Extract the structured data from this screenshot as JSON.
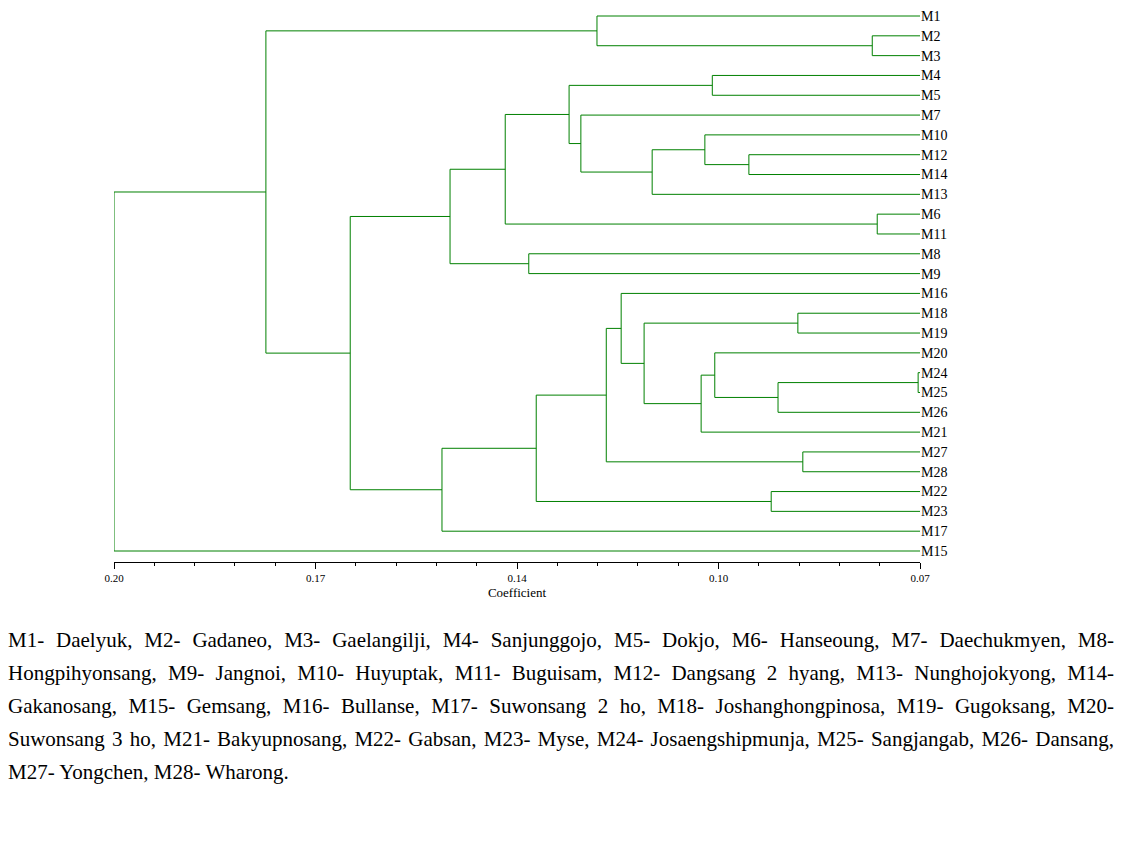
{
  "chart_data": {
    "type": "dendrogram",
    "x_label": "Coefficient",
    "xlim": [
      0.2,
      0.07
    ],
    "xticks": [
      {
        "value": 0.2,
        "label": "0.20"
      },
      {
        "value": 0.1675,
        "label": "0.17"
      },
      {
        "value": 0.135,
        "label": "0.14"
      },
      {
        "value": 0.1025,
        "label": "0.10"
      },
      {
        "value": 0.07,
        "label": "0.07"
      }
    ],
    "color": "#008000",
    "tree": {
      "height": 0.2,
      "children": [
        {
          "height": 0.1755,
          "children": [
            {
              "height": 0.1221,
              "children": [
                "M1",
                {
                  "height": 0.0777,
                  "children": [
                    "M2",
                    "M3"
                  ]
                }
              ]
            },
            {
              "height": 0.1619,
              "children": [
                {
                  "height": 0.1458,
                  "children": [
                    {
                      "height": 0.1369,
                      "children": [
                        {
                          "height": 0.1266,
                          "children": [
                            {
                              "height": 0.1035,
                              "children": [
                                "M4",
                                "M5"
                              ]
                            },
                            {
                              "height": 0.1247,
                              "children": [
                                "M7",
                                {
                                  "height": 0.1132,
                                  "children": [
                                    {
                                      "height": 0.1047,
                                      "children": [
                                        "M10",
                                        {
                                          "height": 0.0976,
                                          "children": [
                                            "M12",
                                            "M14"
                                          ]
                                        }
                                      ]
                                    },
                                    "M13"
                                  ]
                                }
                              ]
                            }
                          ]
                        },
                        {
                          "height": 0.0769,
                          "children": [
                            "M6",
                            "M11"
                          ]
                        }
                      ]
                    },
                    {
                      "height": 0.1331,
                      "children": [
                        "M8",
                        "M9"
                      ]
                    }
                  ]
                },
                {
                  "height": 0.1471,
                  "children": [
                    {
                      "height": 0.1319,
                      "children": [
                        {
                          "height": 0.1206,
                          "children": [
                            {
                              "height": 0.1182,
                              "children": [
                                "M16",
                                {
                                  "height": 0.1145,
                                  "children": [
                                    {
                                      "height": 0.0897,
                                      "children": [
                                        "M18",
                                        "M19"
                                      ]
                                    },
                                    {
                                      "height": 0.1053,
                                      "children": [
                                        {
                                          "height": 0.1031,
                                          "children": [
                                            "M20",
                                            {
                                              "height": 0.0929,
                                              "children": [
                                                {
                                                  "height": 0.0703,
                                                  "children": [
                                                    "M24",
                                                    "M25"
                                                  ]
                                                },
                                                "M26"
                                              ]
                                            }
                                          ]
                                        },
                                        "M21"
                                      ]
                                    }
                                  ]
                                }
                              ]
                            },
                            {
                              "height": 0.0889,
                              "children": [
                                "M27",
                                "M28"
                              ]
                            }
                          ]
                        },
                        {
                          "height": 0.094,
                          "children": [
                            "M22",
                            "M23"
                          ]
                        }
                      ]
                    },
                    "M17"
                  ]
                }
              ]
            }
          ]
        },
        "M15"
      ]
    }
  },
  "caption": "M1- Daelyuk, M2- Gadaneo, M3- Gaelangilji, M4- Sanjunggojo, M5- Dokjo, M6- Hanseoung, M7- Daechukmyen, M8- Hongpihyonsang, M9- Jangnoi, M10- Huyuptak, M11- Buguisam, M12- Dangsang 2 hyang, M13- Nunghojokyong, M14- Gakanosang, M15- Gemsang, M16- Bullanse, M17- Suwonsang 2 ho, M18- Joshanghongpinosa, M19- Gugoksang, M20-Suwonsang 3 ho, M21- Bakyupnosang, M22- Gabsan, M23- Myse, M24- Josaengshipmunja, M25- Sangjangab, M26- Dansang, M27- Yongchen, M28- Wharong."
}
